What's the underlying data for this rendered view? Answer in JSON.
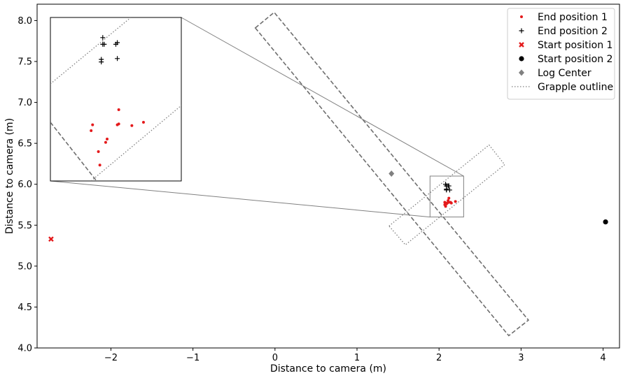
{
  "chart_data": {
    "type": "scatter",
    "title": "",
    "xlabel": "Distance to camera (m)",
    "ylabel": "Distance to camera (m)",
    "xlim": [
      -2.9,
      4.2
    ],
    "ylim": [
      4.0,
      8.2
    ],
    "x_ticks": [
      -2,
      -1,
      0,
      1,
      2,
      3,
      4
    ],
    "x_tick_labels": [
      "−2",
      "−1",
      "0",
      "1",
      "2",
      "3",
      "4"
    ],
    "y_ticks": [
      4.0,
      4.5,
      5.0,
      5.5,
      6.0,
      6.5,
      7.0,
      7.5,
      8.0
    ],
    "y_tick_labels": [
      "4.0",
      "4.5",
      "5.0",
      "5.5",
      "6.0",
      "6.5",
      "7.0",
      "7.5",
      "8.0"
    ],
    "grid": false,
    "legend_position": "top-right",
    "series": [
      {
        "name": "End position 1",
        "marker": "dot",
        "color": "#e41a1c",
        "points": [
          [
            2.07,
            5.78
          ],
          [
            2.08,
            5.77
          ],
          [
            2.07,
            5.75
          ],
          [
            2.08,
            5.73
          ],
          [
            2.1,
            5.77
          ],
          [
            2.11,
            5.8
          ],
          [
            2.12,
            5.78
          ],
          [
            2.12,
            5.83
          ],
          [
            2.14,
            5.78
          ],
          [
            2.2,
            5.79
          ],
          [
            2.15,
            5.77
          ],
          [
            2.09,
            5.76
          ]
        ]
      },
      {
        "name": "End position 2",
        "marker": "plus",
        "color": "#000000",
        "points": [
          [
            2.08,
            6.0
          ],
          [
            2.09,
            5.98
          ],
          [
            2.09,
            5.98
          ],
          [
            2.11,
            5.98
          ],
          [
            2.12,
            5.98
          ],
          [
            2.09,
            5.94
          ],
          [
            2.09,
            5.93
          ],
          [
            2.13,
            5.93
          ]
        ]
      },
      {
        "name": "Start position 1",
        "marker": "x",
        "color": "#e41a1c",
        "points": [
          [
            -2.73,
            5.33
          ]
        ]
      },
      {
        "name": "Start position 2",
        "marker": "circle",
        "color": "#000000",
        "points": [
          [
            4.03,
            5.54
          ]
        ]
      },
      {
        "name": "Log Center",
        "marker": "diamond",
        "color": "#808080",
        "points": [
          [
            1.42,
            6.13
          ]
        ]
      },
      {
        "name": "Grapple outline",
        "marker": "dotted-line",
        "color": "#808080",
        "points": [
          [
            1.39,
            5.49
          ],
          [
            2.61,
            6.48
          ],
          [
            2.8,
            6.24
          ],
          [
            1.59,
            5.26
          ]
        ]
      }
    ],
    "log_outline": [
      [
        -0.24,
        7.91
      ],
      [
        -0.01,
        8.1
      ],
      [
        3.09,
        4.34
      ],
      [
        2.85,
        4.15
      ]
    ],
    "inset": {
      "source_box": {
        "x": [
          1.89,
          2.3
        ],
        "y": [
          5.6,
          6.1
        ]
      },
      "end_position_1": [
        [
          1.974,
          5.757
        ],
        [
          1.973,
          5.75
        ],
        [
          1.978,
          5.725
        ],
        [
          1.979,
          5.709
        ],
        [
          1.983,
          5.736
        ],
        [
          1.984,
          5.74
        ],
        [
          1.991,
          5.757
        ],
        [
          1.992,
          5.775
        ],
        [
          1.992,
          5.758
        ],
        [
          2.001,
          5.756
        ],
        [
          2.009,
          5.76
        ]
      ],
      "end_position_2": [
        [
          1.981,
          5.861
        ],
        [
          1.981,
          5.853
        ],
        [
          1.982,
          5.853
        ],
        [
          1.99,
          5.853
        ],
        [
          1.991,
          5.855
        ],
        [
          1.98,
          5.835
        ],
        [
          1.98,
          5.832
        ],
        [
          1.991,
          5.836
        ]
      ]
    }
  }
}
